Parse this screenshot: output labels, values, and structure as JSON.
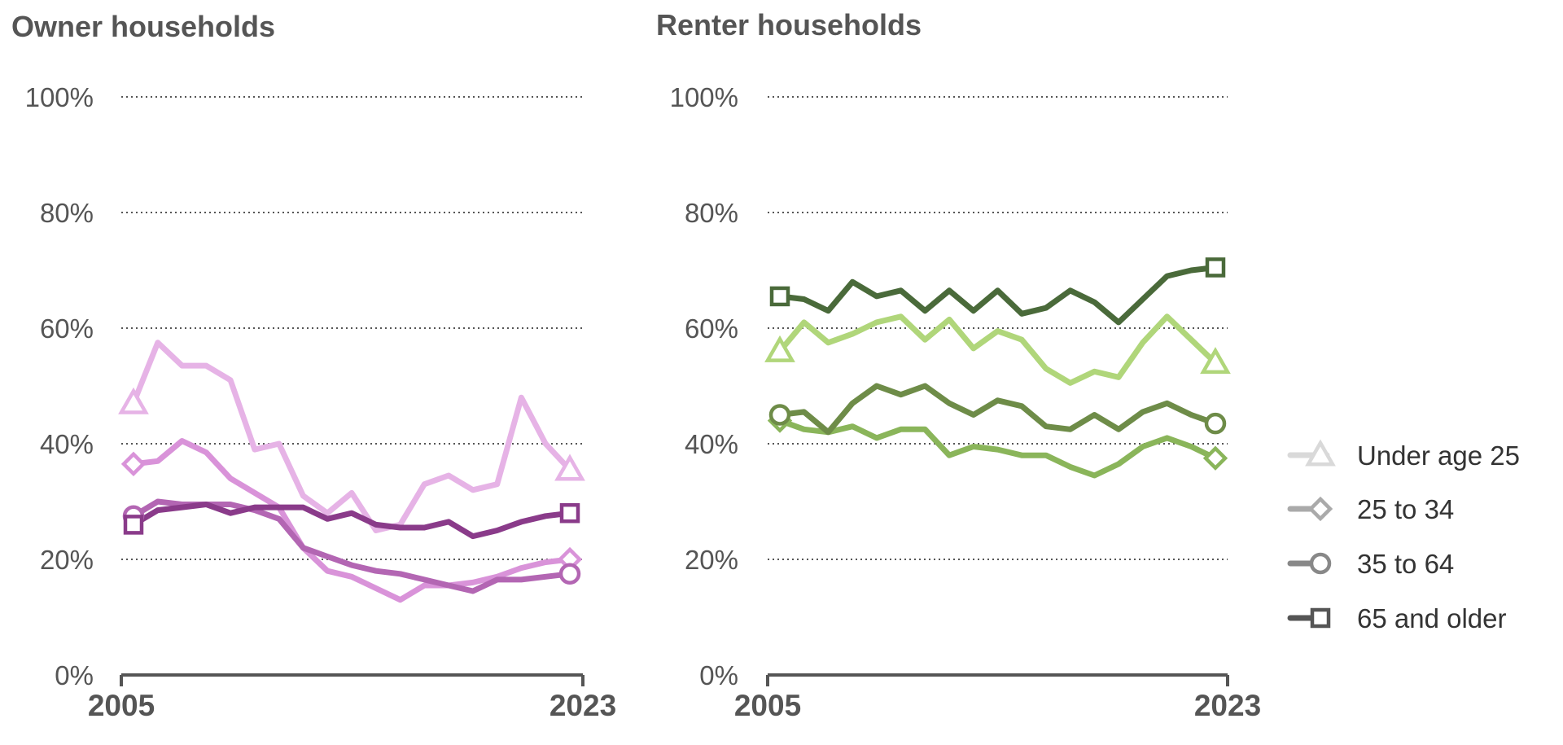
{
  "chart_data": [
    {
      "type": "line",
      "title": "Owner households",
      "x": [
        2005,
        2006,
        2007,
        2008,
        2009,
        2010,
        2011,
        2012,
        2013,
        2014,
        2015,
        2016,
        2017,
        2018,
        2019,
        2020,
        2021,
        2022,
        2023
      ],
      "x_tick_labels": [
        "2005",
        "2023"
      ],
      "y_tick_labels": [
        "100%",
        "80%",
        "60%",
        "40%",
        "20%",
        "0%"
      ],
      "y_ticks": [
        100,
        80,
        60,
        40,
        20,
        0
      ],
      "ylim": [
        0,
        100
      ],
      "grid": true,
      "series": [
        {
          "name": "Under age 25",
          "marker": "triangle",
          "color": "#e6b3e6",
          "values": [
            47,
            57.5,
            53.5,
            53.5,
            51,
            39,
            40,
            31,
            28,
            31.5,
            25,
            26,
            33,
            34.5,
            32,
            33,
            48,
            40,
            35.5
          ]
        },
        {
          "name": "25 to 34",
          "marker": "diamond",
          "color": "#d993d9",
          "values": [
            36.5,
            37,
            40.5,
            38.5,
            34,
            31.5,
            29,
            22,
            18,
            17,
            15,
            13,
            15.5,
            15.5,
            16,
            17,
            18.5,
            19.5,
            20
          ]
        },
        {
          "name": "35 to 64",
          "marker": "circle",
          "color": "#b366b3",
          "values": [
            27.5,
            30,
            29.5,
            29.5,
            29.5,
            28.5,
            27,
            22,
            20.5,
            19,
            18,
            17.5,
            16.5,
            15.5,
            14.5,
            16.5,
            16.5,
            17,
            17.5
          ]
        },
        {
          "name": "65 and older",
          "marker": "square",
          "color": "#8a3b8a",
          "values": [
            26,
            28.5,
            29,
            29.5,
            28,
            29,
            29,
            29,
            27,
            28,
            26,
            25.5,
            25.5,
            26.5,
            24,
            25,
            26.5,
            27.5,
            28
          ]
        }
      ]
    },
    {
      "type": "line",
      "title": "Renter households",
      "x": [
        2005,
        2006,
        2007,
        2008,
        2009,
        2010,
        2011,
        2012,
        2013,
        2014,
        2015,
        2016,
        2017,
        2018,
        2019,
        2020,
        2021,
        2022,
        2023
      ],
      "x_tick_labels": [
        "2005",
        "2023"
      ],
      "y_tick_labels": [
        "100%",
        "80%",
        "60%",
        "40%",
        "20%",
        "0%"
      ],
      "y_ticks": [
        100,
        80,
        60,
        40,
        20,
        0
      ],
      "ylim": [
        0,
        100
      ],
      "grid": true,
      "series": [
        {
          "name": "Under age 25",
          "marker": "triangle",
          "color": "#b0d67a",
          "values": [
            56,
            61,
            57.5,
            59,
            61,
            62,
            58,
            61.5,
            56.5,
            59.5,
            58,
            53,
            50.5,
            52.5,
            51.5,
            57.5,
            62,
            58,
            54
          ]
        },
        {
          "name": "25 to 34",
          "marker": "diamond",
          "color": "#8ab55a",
          "values": [
            44,
            42.5,
            42,
            43,
            41,
            42.5,
            42.5,
            38,
            39.5,
            39,
            38,
            38,
            36,
            34.5,
            36.5,
            39.5,
            41,
            39.5,
            37.5
          ]
        },
        {
          "name": "35 to 64",
          "marker": "circle",
          "color": "#6e8c48",
          "values": [
            45,
            45.5,
            42,
            47,
            50,
            48.5,
            50,
            47,
            45,
            47.5,
            46.5,
            43,
            42.5,
            45,
            42.5,
            45.5,
            47,
            45,
            43.5
          ]
        },
        {
          "name": "65 and older",
          "marker": "square",
          "color": "#4a6a3a",
          "values": [
            65.5,
            65,
            63,
            68,
            65.5,
            66.5,
            63,
            66.5,
            63,
            66.5,
            62.5,
            63.5,
            66.5,
            64.5,
            61,
            65,
            69,
            70,
            70.5
          ]
        }
      ]
    }
  ],
  "legend": {
    "placement": "right",
    "items": [
      {
        "label": "Under age 25",
        "marker": "triangle",
        "color": "#d9d9d9"
      },
      {
        "label": "25 to 34",
        "marker": "diamond",
        "color": "#aaaaaa"
      },
      {
        "label": "35 to 64",
        "marker": "circle",
        "color": "#888888"
      },
      {
        "label": "65 and older",
        "marker": "square",
        "color": "#555555"
      }
    ]
  }
}
